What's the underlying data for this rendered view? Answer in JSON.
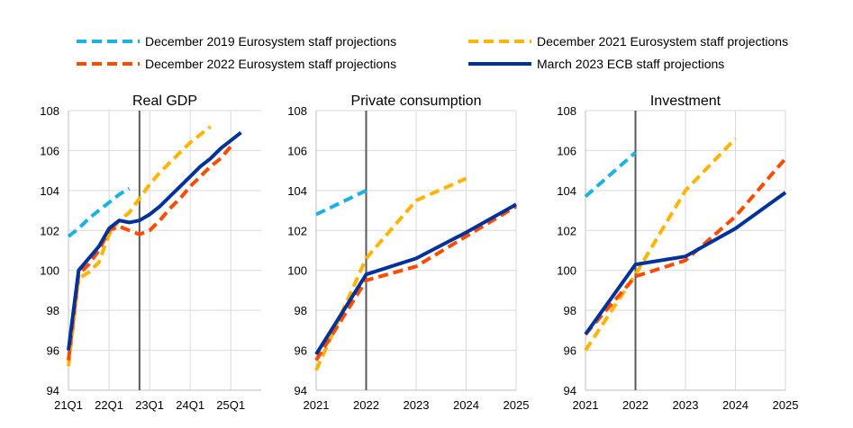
{
  "chart_data": {
    "type": "line",
    "legend": {
      "placement": "top",
      "entries": [
        {
          "name": "December 2019 Eurosystem staff projections",
          "color": "#1AB2E6",
          "dash": true
        },
        {
          "name": "December 2021 Eurosystem staff projections",
          "color": "#FFB400",
          "dash": true
        },
        {
          "name": "December 2022 Eurosystem staff projections",
          "color": "#FF4B00",
          "dash": true
        },
        {
          "name": "March 2023 ECB staff projections",
          "color": "#003299",
          "dash": false
        }
      ]
    },
    "panels": [
      {
        "title": "Real GDP",
        "grid": true,
        "ylim": [
          94,
          108
        ],
        "yticks": [
          94,
          96,
          98,
          100,
          102,
          104,
          106,
          108
        ],
        "xlim": [
          0,
          19
        ],
        "xticks": [
          {
            "x": 0,
            "label": "21Q1"
          },
          {
            "x": 4,
            "label": "22Q1"
          },
          {
            "x": 8,
            "label": "23Q1"
          },
          {
            "x": 12,
            "label": "24Q1"
          },
          {
            "x": 16,
            "label": "25Q1"
          }
        ],
        "vline": 7,
        "series": [
          {
            "name": "December 2019 Eurosystem staff projections",
            "points": [
              [
                0,
                101.7
              ],
              [
                1,
                102.1
              ],
              [
                2,
                102.6
              ],
              [
                3,
                103.0
              ],
              [
                4,
                103.4
              ],
              [
                5,
                103.8
              ],
              [
                6,
                104.1
              ]
            ]
          },
          {
            "name": "December 2021 Eurosystem staff projections",
            "points": [
              [
                0,
                95.2
              ],
              [
                1,
                99.6
              ],
              [
                2,
                99.9
              ],
              [
                3,
                100.4
              ],
              [
                4,
                101.8
              ],
              [
                5,
                102.5
              ],
              [
                6,
                102.9
              ],
              [
                7,
                103.6
              ],
              [
                8,
                104.3
              ],
              [
                9,
                104.9
              ],
              [
                10,
                105.4
              ],
              [
                11,
                105.9
              ],
              [
                12,
                106.4
              ],
              [
                13,
                106.8
              ],
              [
                14,
                107.2
              ]
            ]
          },
          {
            "name": "December 2022 Eurosystem staff projections",
            "points": [
              [
                0,
                95.5
              ],
              [
                1,
                99.8
              ],
              [
                2,
                100.3
              ],
              [
                3,
                101.0
              ],
              [
                4,
                102.0
              ],
              [
                5,
                102.2
              ],
              [
                6,
                102.0
              ],
              [
                7,
                101.8
              ],
              [
                8,
                102.0
              ],
              [
                9,
                102.5
              ],
              [
                10,
                103.1
              ],
              [
                11,
                103.6
              ],
              [
                12,
                104.2
              ],
              [
                13,
                104.7
              ],
              [
                14,
                105.2
              ],
              [
                15,
                105.6
              ],
              [
                16,
                106.2
              ]
            ]
          },
          {
            "name": "March 2023 ECB staff projections",
            "points": [
              [
                0,
                96.0
              ],
              [
                1,
                100.0
              ],
              [
                2,
                100.6
              ],
              [
                3,
                101.2
              ],
              [
                4,
                102.1
              ],
              [
                5,
                102.5
              ],
              [
                6,
                102.4
              ],
              [
                7,
                102.5
              ],
              [
                8,
                102.8
              ],
              [
                9,
                103.2
              ],
              [
                10,
                103.7
              ],
              [
                11,
                104.2
              ],
              [
                12,
                104.7
              ],
              [
                13,
                105.2
              ],
              [
                14,
                105.6
              ],
              [
                15,
                106.1
              ],
              [
                16,
                106.5
              ],
              [
                17,
                106.9
              ]
            ]
          }
        ]
      },
      {
        "title": "Private consumption",
        "grid": true,
        "ylim": [
          94,
          108
        ],
        "yticks": [
          94,
          96,
          98,
          100,
          102,
          104,
          106,
          108
        ],
        "xlim": [
          2021,
          2025
        ],
        "xticks": [
          {
            "x": 2021,
            "label": "2021"
          },
          {
            "x": 2022,
            "label": "2022"
          },
          {
            "x": 2023,
            "label": "2023"
          },
          {
            "x": 2024,
            "label": "2024"
          },
          {
            "x": 2025,
            "label": "2025"
          }
        ],
        "vline": 2022,
        "series": [
          {
            "name": "December 2019 Eurosystem staff projections",
            "points": [
              [
                2021,
                102.8
              ],
              [
                2022,
                104.0
              ]
            ]
          },
          {
            "name": "December 2021 Eurosystem staff projections",
            "points": [
              [
                2021,
                95.0
              ],
              [
                2022,
                100.6
              ],
              [
                2023,
                103.5
              ],
              [
                2024,
                104.6
              ]
            ]
          },
          {
            "name": "December 2022 Eurosystem staff projections",
            "points": [
              [
                2021,
                95.5
              ],
              [
                2022,
                99.5
              ],
              [
                2023,
                100.2
              ],
              [
                2024,
                101.7
              ],
              [
                2025,
                103.2
              ]
            ]
          },
          {
            "name": "March 2023 ECB staff projections",
            "points": [
              [
                2021,
                95.8
              ],
              [
                2022,
                99.8
              ],
              [
                2023,
                100.6
              ],
              [
                2024,
                101.9
              ],
              [
                2025,
                103.3
              ]
            ]
          }
        ]
      },
      {
        "title": "Investment",
        "grid": true,
        "ylim": [
          94,
          108
        ],
        "yticks": [
          94,
          96,
          98,
          100,
          102,
          104,
          106,
          108
        ],
        "xlim": [
          2021,
          2025
        ],
        "xticks": [
          {
            "x": 2021,
            "label": "2021"
          },
          {
            "x": 2022,
            "label": "2022"
          },
          {
            "x": 2023,
            "label": "2023"
          },
          {
            "x": 2024,
            "label": "2024"
          },
          {
            "x": 2025,
            "label": "2025"
          }
        ],
        "vline": 2022,
        "series": [
          {
            "name": "December 2019 Eurosystem staff projections",
            "points": [
              [
                2021,
                103.7
              ],
              [
                2022,
                105.9
              ]
            ]
          },
          {
            "name": "December 2021 Eurosystem staff projections",
            "points": [
              [
                2021,
                96.0
              ],
              [
                2022,
                99.8
              ],
              [
                2023,
                104.0
              ],
              [
                2024,
                106.6
              ]
            ]
          },
          {
            "name": "December 2022 Eurosystem staff projections",
            "points": [
              [
                2021,
                96.8
              ],
              [
                2022,
                99.7
              ],
              [
                2023,
                100.5
              ],
              [
                2024,
                102.7
              ],
              [
                2025,
                105.6
              ]
            ]
          },
          {
            "name": "March 2023 ECB staff projections",
            "points": [
              [
                2021,
                96.8
              ],
              [
                2022,
                100.3
              ],
              [
                2023,
                100.7
              ],
              [
                2024,
                102.1
              ],
              [
                2025,
                103.9
              ]
            ]
          }
        ]
      }
    ]
  }
}
